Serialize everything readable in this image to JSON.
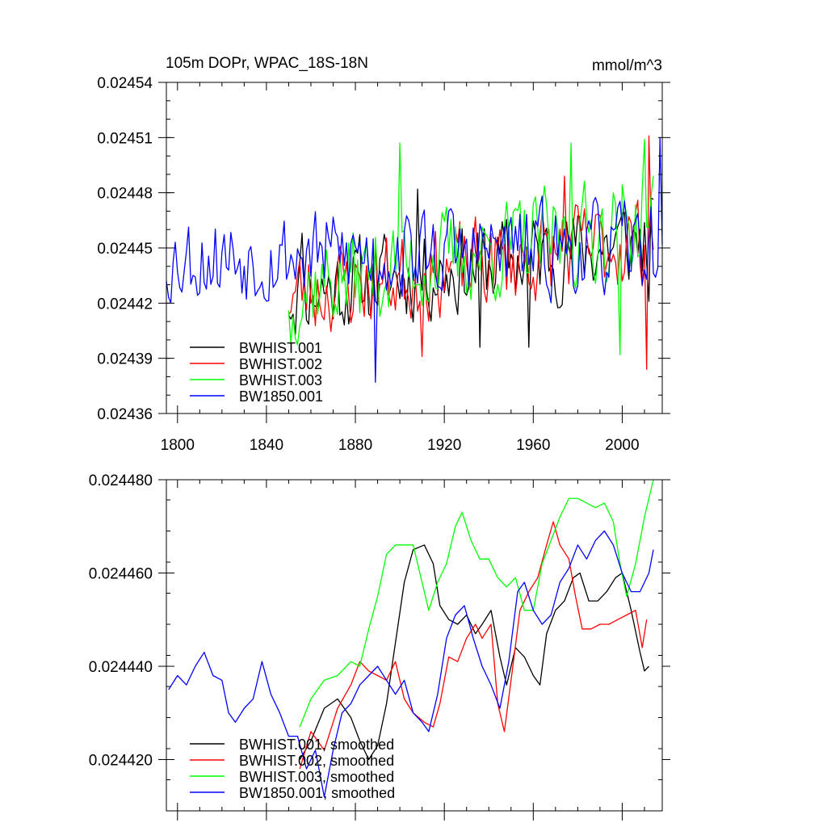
{
  "colors": {
    "BWHIST.001": "#000000",
    "BWHIST.002": "#ff0000",
    "BWHIST.003": "#00ff00",
    "BW1850.001": "#0000ff"
  },
  "chart_data": [
    {
      "type": "line",
      "title": "105m DOPr, WPAC_18S-18N",
      "units": "mmol/m^3",
      "xlim": [
        1795,
        2018
      ],
      "ylim": [
        0.02436,
        0.02454
      ],
      "xticks": [
        1800,
        1840,
        1880,
        1920,
        1960,
        2000
      ],
      "yticks": [
        "0.02436",
        "0.02439",
        "0.02442",
        "0.02445",
        "0.02448",
        "0.02451",
        "0.02454"
      ],
      "legend": [
        "BWHIST.001",
        "BWHIST.002",
        "BWHIST.003",
        "BW1850.001"
      ],
      "legend_position": "bottom-left",
      "series": [
        {
          "name": "BWHIST.001",
          "x_start": 1850,
          "x_end": 2014,
          "base": 0.024425,
          "end": 0.024455,
          "amp": 2.2e-05,
          "seed": 11,
          "anchors": [
            [
              1856,
              0.024458
            ],
            [
              1908,
              0.024482
            ],
            [
              1936,
              0.024396
            ],
            [
              1958,
              0.024396
            ],
            [
              2012,
              0.024421
            ]
          ]
        },
        {
          "name": "BWHIST.002",
          "x_start": 1850,
          "x_end": 2014,
          "base": 0.024425,
          "end": 0.024455,
          "amp": 2.2e-05,
          "seed": 23,
          "anchors": [
            [
              1910,
              0.024391
            ],
            [
              1974,
              0.024489
            ],
            [
              2012,
              0.024511
            ],
            [
              2011,
              0.024384
            ]
          ]
        },
        {
          "name": "BWHIST.003",
          "x_start": 1850,
          "x_end": 2014,
          "base": 0.024428,
          "end": 0.024465,
          "amp": 2.4e-05,
          "seed": 37,
          "anchors": [
            [
              1851,
              0.024398
            ],
            [
              1900,
              0.024507
            ],
            [
              1977,
              0.024507
            ],
            [
              1999,
              0.024392
            ],
            [
              2010,
              0.024509
            ]
          ]
        },
        {
          "name": "BW1850.001",
          "x_start": 1795,
          "x_end": 2018,
          "base": 0.024445,
          "end": 0.02445,
          "amp": 2.2e-05,
          "seed": 53,
          "anchors": [
            [
              1795,
              0.024432
            ],
            [
              1889,
              0.024377
            ],
            [
              2017,
              0.02451
            ]
          ]
        }
      ]
    },
    {
      "type": "line",
      "title": "",
      "xlim": [
        1795,
        2018
      ],
      "ylim": [
        0.024409,
        0.02448
      ],
      "xticks": [
        1800,
        1840,
        1880,
        1920,
        1960,
        2000
      ],
      "xtick_labels_shown": false,
      "yticks": [
        "0.024420",
        "0.024440",
        "0.024460",
        "0.024480"
      ],
      "legend": [
        "BWHIST.001, smoothed",
        "BWHIST.002, smoothed",
        "BWHIST.003, smoothed",
        "BW1850.001, smoothed"
      ],
      "legend_position": "bottom-left",
      "series": [
        {
          "name": "BWHIST.001, smoothed",
          "points": [
            [
              1855,
              0.02442
            ],
            [
              1860,
              0.024424
            ],
            [
              1866,
              0.024431
            ],
            [
              1872,
              0.024433
            ],
            [
              1878,
              0.024429
            ],
            [
              1882,
              0.024424
            ],
            [
              1886,
              0.02442
            ],
            [
              1890,
              0.024423
            ],
            [
              1894,
              0.024432
            ],
            [
              1898,
              0.024445
            ],
            [
              1902,
              0.024458
            ],
            [
              1906,
              0.024465
            ],
            [
              1911,
              0.024466
            ],
            [
              1915,
              0.024462
            ],
            [
              1918,
              0.024453
            ],
            [
              1922,
              0.02445
            ],
            [
              1926,
              0.024449
            ],
            [
              1930,
              0.024451
            ],
            [
              1934,
              0.024447
            ],
            [
              1937,
              0.024449
            ],
            [
              1941,
              0.024452
            ],
            [
              1945,
              0.024442
            ],
            [
              1948,
              0.024436
            ],
            [
              1952,
              0.024444
            ],
            [
              1956,
              0.024442
            ],
            [
              1960,
              0.024438
            ],
            [
              1963,
              0.024436
            ],
            [
              1966,
              0.024447
            ],
            [
              1970,
              0.024452
            ],
            [
              1974,
              0.024454
            ],
            [
              1978,
              0.024459
            ],
            [
              1981,
              0.02446
            ],
            [
              1985,
              0.024454
            ],
            [
              1989,
              0.024454
            ],
            [
              1993,
              0.024456
            ],
            [
              1997,
              0.024459
            ],
            [
              2000,
              0.02446
            ],
            [
              2004,
              0.024452
            ],
            [
              2008,
              0.024443
            ],
            [
              2010,
              0.024439
            ],
            [
              2012,
              0.02444
            ]
          ]
        },
        {
          "name": "BWHIST.002, smoothed",
          "points": [
            [
              1855,
              0.024418
            ],
            [
              1860,
              0.024426
            ],
            [
              1866,
              0.024422
            ],
            [
              1872,
              0.024431
            ],
            [
              1878,
              0.024436
            ],
            [
              1882,
              0.024441
            ],
            [
              1886,
              0.024439
            ],
            [
              1890,
              0.024438
            ],
            [
              1894,
              0.024437
            ],
            [
              1898,
              0.024441
            ],
            [
              1902,
              0.024433
            ],
            [
              1906,
              0.02443
            ],
            [
              1911,
              0.024428
            ],
            [
              1915,
              0.024427
            ],
            [
              1918,
              0.024432
            ],
            [
              1922,
              0.024442
            ],
            [
              1926,
              0.024441
            ],
            [
              1930,
              0.024446
            ],
            [
              1934,
              0.024449
            ],
            [
              1937,
              0.024446
            ],
            [
              1941,
              0.024449
            ],
            [
              1944,
              0.024432
            ],
            [
              1947,
              0.024426
            ],
            [
              1950,
              0.024437
            ],
            [
              1954,
              0.024452
            ],
            [
              1958,
              0.024456
            ],
            [
              1962,
              0.024459
            ],
            [
              1966,
              0.024466
            ],
            [
              1969,
              0.024471
            ],
            [
              1972,
              0.024466
            ],
            [
              1976,
              0.024463
            ],
            [
              1979,
              0.024455
            ],
            [
              1982,
              0.024448
            ],
            [
              1986,
              0.024448
            ],
            [
              1990,
              0.024449
            ],
            [
              1994,
              0.024449
            ],
            [
              1998,
              0.02445
            ],
            [
              2002,
              0.024451
            ],
            [
              2006,
              0.024452
            ],
            [
              2009,
              0.024444
            ],
            [
              2011,
              0.02445
            ]
          ]
        },
        {
          "name": "BWHIST.003, smoothed",
          "points": [
            [
              1855,
              0.024427
            ],
            [
              1860,
              0.024433
            ],
            [
              1866,
              0.024437
            ],
            [
              1872,
              0.024438
            ],
            [
              1878,
              0.024441
            ],
            [
              1882,
              0.02444
            ],
            [
              1886,
              0.024448
            ],
            [
              1890,
              0.024455
            ],
            [
              1894,
              0.024464
            ],
            [
              1898,
              0.024466
            ],
            [
              1902,
              0.024466
            ],
            [
              1906,
              0.024466
            ],
            [
              1910,
              0.024458
            ],
            [
              1913,
              0.024452
            ],
            [
              1917,
              0.024458
            ],
            [
              1921,
              0.024462
            ],
            [
              1925,
              0.02447
            ],
            [
              1928,
              0.024473
            ],
            [
              1932,
              0.024467
            ],
            [
              1936,
              0.024463
            ],
            [
              1940,
              0.024463
            ],
            [
              1944,
              0.024459
            ],
            [
              1948,
              0.024457
            ],
            [
              1952,
              0.024459
            ],
            [
              1956,
              0.024452
            ],
            [
              1960,
              0.024452
            ],
            [
              1964,
              0.024462
            ],
            [
              1968,
              0.024467
            ],
            [
              1972,
              0.024472
            ],
            [
              1976,
              0.024476
            ],
            [
              1980,
              0.024476
            ],
            [
              1984,
              0.024475
            ],
            [
              1988,
              0.024474
            ],
            [
              1992,
              0.024475
            ],
            [
              1996,
              0.024471
            ],
            [
              1999,
              0.024462
            ],
            [
              2002,
              0.024455
            ],
            [
              2006,
              0.024462
            ],
            [
              2010,
              0.024472
            ],
            [
              2014,
              0.02448
            ]
          ]
        },
        {
          "name": "BW1850.001, smoothed",
          "points": [
            [
              1796,
              0.024435
            ],
            [
              1800,
              0.024438
            ],
            [
              1804,
              0.024436
            ],
            [
              1808,
              0.02444
            ],
            [
              1812,
              0.024443
            ],
            [
              1816,
              0.024438
            ],
            [
              1820,
              0.024437
            ],
            [
              1823,
              0.02443
            ],
            [
              1826,
              0.024428
            ],
            [
              1830,
              0.024431
            ],
            [
              1834,
              0.024433
            ],
            [
              1838,
              0.024441
            ],
            [
              1842,
              0.024434
            ],
            [
              1846,
              0.02443
            ],
            [
              1850,
              0.024425
            ],
            [
              1854,
              0.024425
            ],
            [
              1858,
              0.024418
            ],
            [
              1862,
              0.024422
            ],
            [
              1866,
              0.024412
            ],
            [
              1870,
              0.024422
            ],
            [
              1874,
              0.02443
            ],
            [
              1878,
              0.024432
            ],
            [
              1882,
              0.024436
            ],
            [
              1886,
              0.024438
            ],
            [
              1890,
              0.02444
            ],
            [
              1894,
              0.024437
            ],
            [
              1898,
              0.024434
            ],
            [
              1902,
              0.024437
            ],
            [
              1906,
              0.02443
            ],
            [
              1910,
              0.024428
            ],
            [
              1913,
              0.024426
            ],
            [
              1917,
              0.024434
            ],
            [
              1921,
              0.024446
            ],
            [
              1925,
              0.024451
            ],
            [
              1929,
              0.024453
            ],
            [
              1933,
              0.024446
            ],
            [
              1937,
              0.02444
            ],
            [
              1941,
              0.024436
            ],
            [
              1945,
              0.024431
            ],
            [
              1949,
              0.024441
            ],
            [
              1953,
              0.024456
            ],
            [
              1956,
              0.024458
            ],
            [
              1960,
              0.024452
            ],
            [
              1964,
              0.024449
            ],
            [
              1968,
              0.024451
            ],
            [
              1972,
              0.024458
            ],
            [
              1976,
              0.024461
            ],
            [
              1980,
              0.024466
            ],
            [
              1984,
              0.024463
            ],
            [
              1988,
              0.024467
            ],
            [
              1992,
              0.024469
            ],
            [
              1996,
              0.024466
            ],
            [
              2000,
              0.02446
            ],
            [
              2004,
              0.024456
            ],
            [
              2008,
              0.024456
            ],
            [
              2012,
              0.02446
            ],
            [
              2014,
              0.024465
            ]
          ]
        }
      ]
    }
  ]
}
